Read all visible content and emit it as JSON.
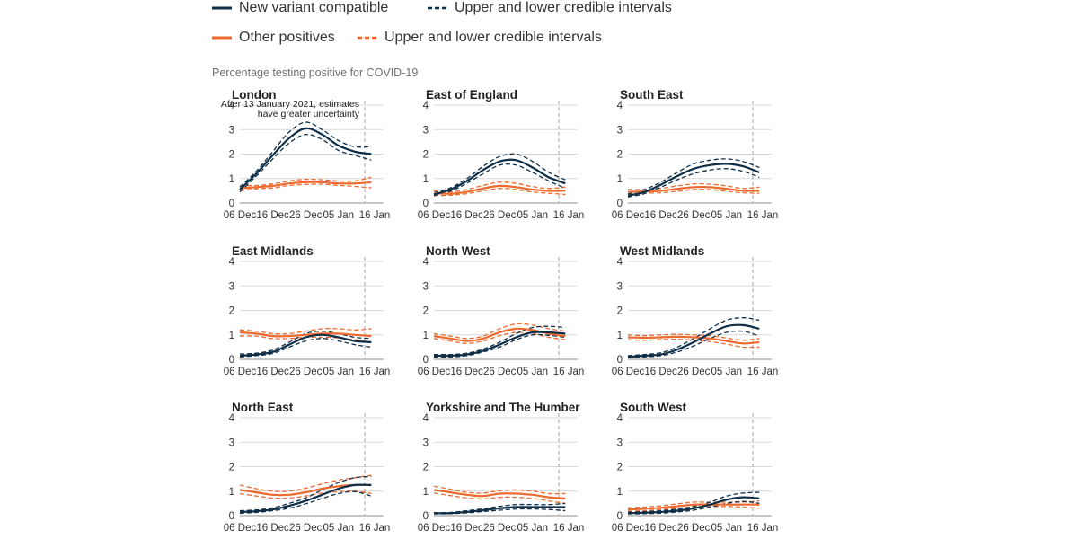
{
  "legend": {
    "items": [
      {
        "label": "New variant compatible",
        "style": "solid",
        "color": "#0f2f48"
      },
      {
        "label": "Upper and lower credible intervals",
        "style": "dashed",
        "color": "#0f2f48"
      },
      {
        "label": "Other positives",
        "style": "solid",
        "color": "#ec6a2d"
      },
      {
        "label": "Upper and lower credible intervals",
        "style": "dashed",
        "color": "#ec6a2d"
      }
    ]
  },
  "colors": {
    "variant": "#0f2f48",
    "other": "#ec6a2d",
    "grid": "#d9d9d9",
    "marker": "#b3b3b3"
  },
  "chart_data": {
    "type": "line",
    "ylabel": "Percentage testing positive for COVID-19",
    "ylim": [
      0,
      4
    ],
    "yticks": [
      0,
      1,
      2,
      3,
      4
    ],
    "x_start": "2020-12-06",
    "x_end": "2021-01-16",
    "xticks": [
      "06 Dec",
      "16 Dec",
      "26 Dec",
      "05 Jan",
      "16 Jan"
    ],
    "xtick_dates": [
      "2020-12-06",
      "2020-12-16",
      "2020-12-26",
      "2021-01-05",
      "2021-01-16"
    ],
    "uncertainty_marker_date": "2021-01-13",
    "sample_dates": [
      "2020-12-06",
      "2020-12-11",
      "2020-12-16",
      "2020-12-21",
      "2020-12-26",
      "2020-12-31",
      "2021-01-05",
      "2021-01-10",
      "2021-01-15"
    ],
    "annotation": {
      "region": "London",
      "lines": [
        "After 13 January 2021, estimates",
        "have greater uncertainty"
      ]
    },
    "grid": "horizontal",
    "panels": [
      {
        "region": "London",
        "variant": [
          0.55,
          1.2,
          1.95,
          2.65,
          3.05,
          2.8,
          2.35,
          2.1,
          2.0
        ],
        "variant_upper": [
          0.65,
          1.3,
          2.1,
          2.9,
          3.3,
          3.0,
          2.55,
          2.3,
          2.3
        ],
        "variant_lower": [
          0.45,
          1.1,
          1.8,
          2.45,
          2.8,
          2.6,
          2.15,
          1.95,
          1.75
        ],
        "other": [
          0.6,
          0.65,
          0.7,
          0.8,
          0.85,
          0.85,
          0.8,
          0.8,
          0.85
        ],
        "other_upper": [
          0.7,
          0.72,
          0.78,
          0.9,
          0.97,
          0.95,
          0.9,
          0.9,
          1.05
        ],
        "other_lower": [
          0.5,
          0.58,
          0.62,
          0.72,
          0.76,
          0.77,
          0.72,
          0.68,
          0.62
        ]
      },
      {
        "region": "East of England",
        "variant": [
          0.35,
          0.55,
          0.9,
          1.35,
          1.7,
          1.75,
          1.45,
          1.05,
          0.8
        ],
        "variant_upper": [
          0.42,
          0.62,
          1.0,
          1.5,
          1.9,
          2.0,
          1.7,
          1.25,
          0.95
        ],
        "variant_lower": [
          0.3,
          0.48,
          0.8,
          1.2,
          1.55,
          1.55,
          1.25,
          0.9,
          0.6
        ],
        "other": [
          0.4,
          0.38,
          0.45,
          0.6,
          0.7,
          0.65,
          0.55,
          0.5,
          0.5
        ],
        "other_upper": [
          0.5,
          0.45,
          0.55,
          0.72,
          0.85,
          0.8,
          0.67,
          0.6,
          0.65
        ],
        "other_lower": [
          0.3,
          0.32,
          0.38,
          0.5,
          0.6,
          0.55,
          0.45,
          0.4,
          0.35
        ]
      },
      {
        "region": "South East",
        "variant": [
          0.3,
          0.45,
          0.75,
          1.1,
          1.4,
          1.55,
          1.6,
          1.5,
          1.25
        ],
        "variant_upper": [
          0.37,
          0.55,
          0.85,
          1.25,
          1.6,
          1.75,
          1.8,
          1.7,
          1.45
        ],
        "variant_lower": [
          0.25,
          0.38,
          0.65,
          0.95,
          1.2,
          1.35,
          1.4,
          1.3,
          1.05
        ],
        "other": [
          0.45,
          0.47,
          0.5,
          0.58,
          0.65,
          0.65,
          0.58,
          0.5,
          0.5
        ],
        "other_upper": [
          0.55,
          0.55,
          0.6,
          0.7,
          0.78,
          0.77,
          0.7,
          0.6,
          0.65
        ],
        "other_lower": [
          0.35,
          0.4,
          0.42,
          0.48,
          0.55,
          0.55,
          0.48,
          0.42,
          0.4
        ]
      },
      {
        "region": "East Midlands",
        "variant": [
          0.15,
          0.2,
          0.3,
          0.6,
          0.9,
          1.0,
          0.9,
          0.75,
          0.7
        ],
        "variant_upper": [
          0.22,
          0.25,
          0.38,
          0.7,
          1.05,
          1.15,
          1.05,
          0.9,
          0.85
        ],
        "variant_lower": [
          0.1,
          0.15,
          0.24,
          0.5,
          0.75,
          0.85,
          0.75,
          0.6,
          0.5
        ],
        "other": [
          1.1,
          1.05,
          0.95,
          0.95,
          1.0,
          1.05,
          1.05,
          1.0,
          0.95
        ],
        "other_upper": [
          1.2,
          1.15,
          1.05,
          1.05,
          1.15,
          1.25,
          1.25,
          1.2,
          1.25
        ],
        "other_lower": [
          0.95,
          0.95,
          0.85,
          0.85,
          0.9,
          0.9,
          0.88,
          0.8,
          0.7
        ]
      },
      {
        "region": "North West",
        "variant": [
          0.15,
          0.15,
          0.2,
          0.35,
          0.6,
          0.9,
          1.1,
          1.1,
          1.05
        ],
        "variant_upper": [
          0.2,
          0.2,
          0.25,
          0.42,
          0.7,
          1.05,
          1.3,
          1.35,
          1.3
        ],
        "variant_lower": [
          0.1,
          0.1,
          0.15,
          0.3,
          0.5,
          0.8,
          1.0,
          0.98,
          0.9
        ],
        "other": [
          0.95,
          0.85,
          0.75,
          0.85,
          1.1,
          1.25,
          1.2,
          1.05,
          0.95
        ],
        "other_upper": [
          1.05,
          0.95,
          0.85,
          0.95,
          1.25,
          1.45,
          1.4,
          1.25,
          1.15
        ],
        "other_lower": [
          0.85,
          0.75,
          0.65,
          0.75,
          0.97,
          1.1,
          1.05,
          0.9,
          0.8
        ]
      },
      {
        "region": "West Midlands",
        "variant": [
          0.1,
          0.15,
          0.2,
          0.4,
          0.7,
          1.05,
          1.35,
          1.4,
          1.25
        ],
        "variant_upper": [
          0.15,
          0.2,
          0.27,
          0.5,
          0.85,
          1.25,
          1.6,
          1.7,
          1.6
        ],
        "variant_lower": [
          0.07,
          0.1,
          0.15,
          0.3,
          0.55,
          0.85,
          1.1,
          1.15,
          0.95
        ],
        "other": [
          0.9,
          0.88,
          0.9,
          0.92,
          0.9,
          0.85,
          0.75,
          0.65,
          0.7
        ],
        "other_upper": [
          1.0,
          0.97,
          1.0,
          1.02,
          1.0,
          0.97,
          0.87,
          0.78,
          0.85
        ],
        "other_lower": [
          0.8,
          0.78,
          0.8,
          0.82,
          0.78,
          0.72,
          0.62,
          0.5,
          0.5
        ]
      },
      {
        "region": "North East",
        "variant": [
          0.15,
          0.18,
          0.25,
          0.4,
          0.6,
          0.85,
          1.1,
          1.25,
          1.25
        ],
        "variant_upper": [
          0.2,
          0.23,
          0.32,
          0.5,
          0.72,
          1.05,
          1.35,
          1.55,
          1.6
        ],
        "variant_lower": [
          0.1,
          0.13,
          0.2,
          0.3,
          0.48,
          0.7,
          0.9,
          0.98,
          0.8
        ],
        "other": [
          1.05,
          0.95,
          0.85,
          0.85,
          0.95,
          1.1,
          1.2,
          1.25,
          1.25
        ],
        "other_upper": [
          1.25,
          1.1,
          1.0,
          1.0,
          1.12,
          1.3,
          1.45,
          1.55,
          1.65
        ],
        "other_lower": [
          0.9,
          0.8,
          0.72,
          0.72,
          0.8,
          0.92,
          0.98,
          1.0,
          0.9
        ]
      },
      {
        "region": "Yorkshire and The Humber",
        "variant": [
          0.1,
          0.1,
          0.15,
          0.22,
          0.3,
          0.35,
          0.35,
          0.35,
          0.35
        ],
        "variant_upper": [
          0.12,
          0.13,
          0.2,
          0.28,
          0.38,
          0.45,
          0.45,
          0.45,
          0.5
        ],
        "variant_lower": [
          0.07,
          0.08,
          0.11,
          0.17,
          0.22,
          0.27,
          0.27,
          0.25,
          0.2
        ],
        "other": [
          1.05,
          0.95,
          0.85,
          0.8,
          0.9,
          0.9,
          0.85,
          0.75,
          0.7
        ],
        "other_upper": [
          1.2,
          1.08,
          0.95,
          0.92,
          1.02,
          1.05,
          1.0,
          0.9,
          0.9
        ],
        "other_lower": [
          0.92,
          0.82,
          0.72,
          0.68,
          0.75,
          0.75,
          0.7,
          0.6,
          0.5
        ]
      },
      {
        "region": "South West",
        "variant": [
          0.1,
          0.12,
          0.15,
          0.2,
          0.3,
          0.45,
          0.65,
          0.75,
          0.7
        ],
        "variant_upper": [
          0.14,
          0.16,
          0.2,
          0.26,
          0.38,
          0.55,
          0.8,
          0.92,
          0.95
        ],
        "variant_lower": [
          0.07,
          0.08,
          0.1,
          0.15,
          0.22,
          0.35,
          0.5,
          0.58,
          0.5
        ],
        "other": [
          0.25,
          0.28,
          0.32,
          0.38,
          0.45,
          0.45,
          0.45,
          0.45,
          0.45
        ],
        "other_upper": [
          0.32,
          0.35,
          0.4,
          0.48,
          0.55,
          0.55,
          0.55,
          0.55,
          0.6
        ],
        "other_lower": [
          0.18,
          0.2,
          0.25,
          0.3,
          0.35,
          0.37,
          0.37,
          0.35,
          0.3
        ]
      }
    ]
  }
}
